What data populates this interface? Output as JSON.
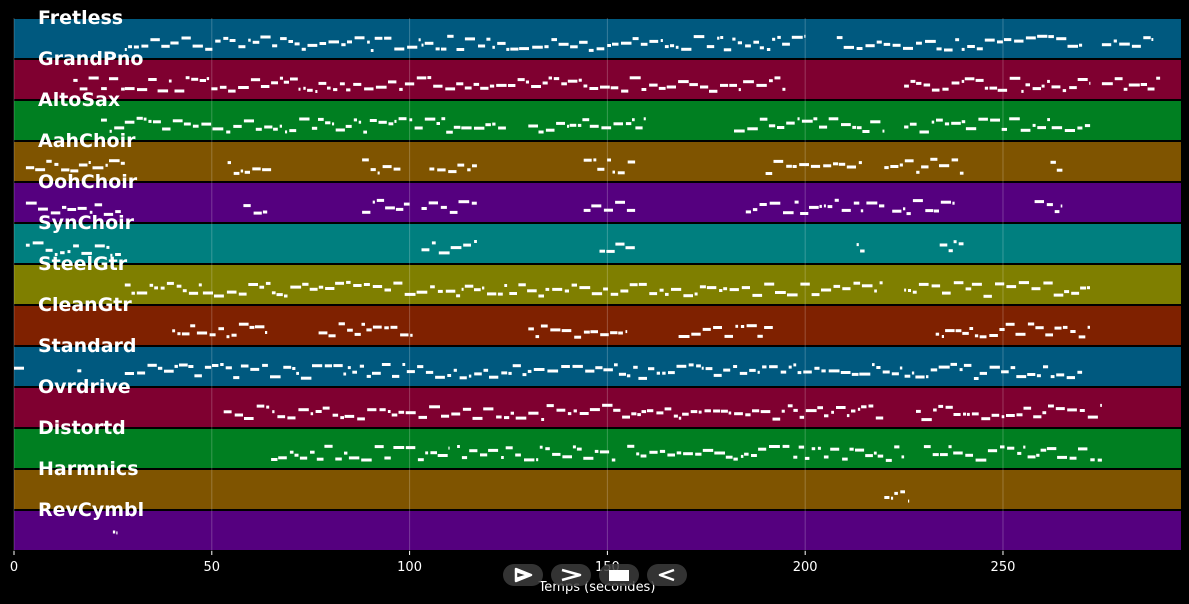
{
  "chart_data": {
    "type": "piano-roll",
    "xlabel": "Temps (secondes)",
    "xlim": [
      0,
      295
    ],
    "xticks": [
      0,
      50,
      100,
      150,
      200,
      250
    ],
    "grid": true,
    "tracks": [
      {
        "name": "Fretless",
        "color": "#00597f",
        "segments": [
          [
            28,
            200
          ],
          [
            208,
            270
          ],
          [
            275,
            288
          ]
        ]
      },
      {
        "name": "GrandPno",
        "color": "#7f0030",
        "segments": [
          [
            15,
            28
          ],
          [
            28,
            195
          ],
          [
            225,
            272
          ],
          [
            275,
            290
          ]
        ]
      },
      {
        "name": "AltoSax",
        "color": "#007f21",
        "segments": [
          [
            22,
            28
          ],
          [
            28,
            125
          ],
          [
            130,
            160
          ],
          [
            182,
            220
          ],
          [
            225,
            272
          ]
        ]
      },
      {
        "name": "AahChoir",
        "color": "#7f5400",
        "segments": [
          [
            3,
            28
          ],
          [
            54,
            65
          ],
          [
            88,
            98
          ],
          [
            105,
            117
          ],
          [
            144,
            157
          ],
          [
            190,
            215
          ],
          [
            220,
            240
          ],
          [
            262,
            265
          ]
        ]
      },
      {
        "name": "OohChoir",
        "color": "#55007f",
        "segments": [
          [
            3,
            27
          ],
          [
            58,
            64
          ],
          [
            88,
            100
          ],
          [
            103,
            117
          ],
          [
            144,
            157
          ],
          [
            185,
            220
          ],
          [
            222,
            238
          ],
          [
            258,
            265
          ]
        ]
      },
      {
        "name": "SynChoir",
        "color": "#007f7f",
        "segments": [
          [
            3,
            27
          ],
          [
            103,
            117
          ],
          [
            148,
            157
          ],
          [
            213,
            215
          ],
          [
            234,
            240
          ]
        ]
      },
      {
        "name": "SteelGtr",
        "color": "#7f7f00",
        "segments": [
          [
            28,
            220
          ],
          [
            225,
            272
          ]
        ]
      },
      {
        "name": "CleanGtr",
        "color": "#7f2100",
        "segments": [
          [
            40,
            64
          ],
          [
            77,
            101
          ],
          [
            130,
            155
          ],
          [
            168,
            192
          ],
          [
            233,
            272
          ]
        ]
      },
      {
        "name": "Standard",
        "color": "#00597f",
        "segments": [
          [
            0,
            3
          ],
          [
            16,
            17
          ],
          [
            28,
            270
          ]
        ]
      },
      {
        "name": "Ovrdrive",
        "color": "#7f0030",
        "segments": [
          [
            53,
            220
          ],
          [
            228,
            275
          ]
        ]
      },
      {
        "name": "Distortd",
        "color": "#007f21",
        "segments": [
          [
            65,
            110
          ],
          [
            112,
            152
          ],
          [
            155,
            196
          ],
          [
            197,
            225
          ],
          [
            230,
            275
          ]
        ]
      },
      {
        "name": "Harmnics",
        "color": "#7f5400",
        "segments": [
          [
            220,
            226
          ]
        ]
      },
      {
        "name": "RevCymbl",
        "color": "#55007f",
        "segments": [
          [
            25,
            26
          ]
        ]
      }
    ]
  },
  "controls": [
    {
      "name": "play-from-start-button",
      "icon": "play-outline-icon"
    },
    {
      "name": "forward-button",
      "icon": "chevron-right-icon"
    },
    {
      "name": "stop-button",
      "icon": "stop-icon"
    },
    {
      "name": "rewind-button",
      "icon": "rewind-icon"
    }
  ]
}
